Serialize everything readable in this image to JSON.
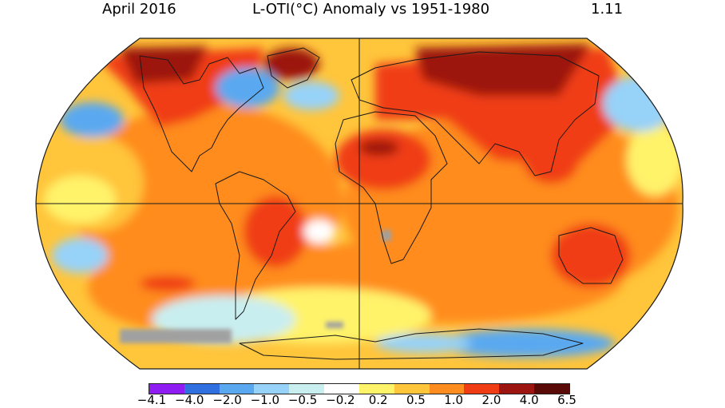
{
  "header": {
    "date": "April 2016",
    "title": "L-OTI(°C) Anomaly vs 1951-1980",
    "global_mean": "1.11"
  },
  "colorbar": {
    "colors": [
      "#8f1cf2",
      "#2f6fe0",
      "#5aa9f0",
      "#97d2f8",
      "#c9eef0",
      "#ffffff",
      "#fff36a",
      "#ffc53b",
      "#ff8c1e",
      "#f03c14",
      "#9c1510",
      "#5a0a06"
    ],
    "tick_labels": [
      "−4.1",
      "−4.0",
      "−2.0",
      "−1.0",
      "−0.5",
      "−0.2",
      "0.2",
      "0.5",
      "1.0",
      "2.0",
      "4.0",
      "6.5"
    ]
  },
  "map": {
    "projection": "robinson",
    "no_data_color": "#a0a0a0"
  }
}
